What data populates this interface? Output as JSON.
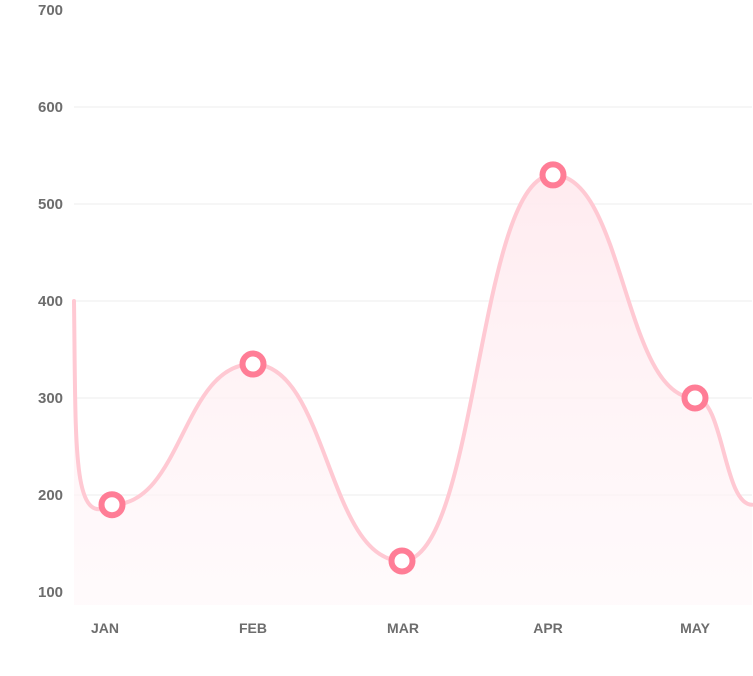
{
  "chart_data": {
    "type": "line",
    "title": "",
    "xlabel": "",
    "ylabel": "",
    "categories": [
      "JAN",
      "FEB",
      "MAR",
      "APR",
      "MAY"
    ],
    "series": [
      {
        "values": [
          190,
          335,
          132,
          530,
          300
        ]
      }
    ],
    "yticks": [
      "100",
      "200",
      "300",
      "400",
      "500",
      "600",
      "700"
    ],
    "ylim": [
      100,
      700
    ],
    "grid": true,
    "smooth": true,
    "fill": "gradient",
    "colors": {
      "line": "#ffc9d3",
      "marker": "#ff7d96",
      "fill_top": "#ffe9ee",
      "fill_bottom": "#fff7f9",
      "grid": "#eeeeee",
      "tick": "#6d6d6d"
    }
  }
}
